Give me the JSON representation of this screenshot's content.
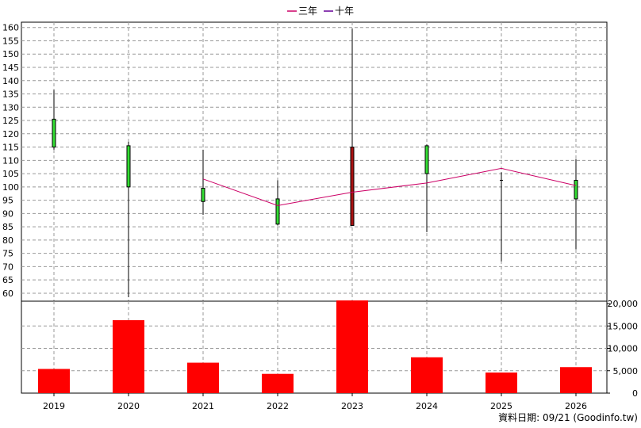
{
  "legend": [
    {
      "label": "三年",
      "color": "#cc0066"
    },
    {
      "label": "十年",
      "color": "#660099"
    }
  ],
  "footer": "資料日期: 09/21  (Goodinfo.tw)",
  "chart_data": {
    "type": "candlestick",
    "categories": [
      "2019",
      "2020",
      "2021",
      "2022",
      "2023",
      "2024",
      "2025",
      "2026"
    ],
    "price_axis": {
      "ylim": [
        57,
        162
      ],
      "ticks": [
        60,
        65,
        70,
        75,
        80,
        85,
        90,
        95,
        100,
        105,
        110,
        115,
        120,
        125,
        130,
        135,
        140,
        145,
        150,
        155,
        160
      ]
    },
    "candles": [
      {
        "x": "2019",
        "open": 115,
        "high": 136.5,
        "low": 114,
        "close": 125.5,
        "color": "#33dd33"
      },
      {
        "x": "2020",
        "open": 100,
        "high": 117,
        "low": 58.5,
        "close": 115.5,
        "color": "#33dd33"
      },
      {
        "x": "2021",
        "open": 94.5,
        "high": 114,
        "low": 89.5,
        "close": 99.5,
        "color": "#33dd33"
      },
      {
        "x": "2022",
        "open": 86,
        "high": 102.5,
        "low": 85.5,
        "close": 95.5,
        "color": "#33dd33"
      },
      {
        "x": "2023",
        "open": 115,
        "high": 159.5,
        "low": 85.5,
        "close": 85.5,
        "color": "#aa1111"
      },
      {
        "x": "2024",
        "open": 105,
        "high": 116,
        "low": 83,
        "close": 115.5,
        "color": "#33dd33"
      },
      {
        "x": "2025",
        "open": 102.5,
        "high": 105.5,
        "low": 72,
        "close": 102.5,
        "color": "#000000"
      },
      {
        "x": "2026",
        "open": 95.5,
        "high": 110.5,
        "low": 76.5,
        "close": 102.5,
        "color": "#33dd33"
      }
    ],
    "series": [
      {
        "name": "三年",
        "color": "#cc0066",
        "points": [
          {
            "x": "2021",
            "y": 103
          },
          {
            "x": "2022",
            "y": 93
          },
          {
            "x": "2023",
            "y": 98
          },
          {
            "x": "2024",
            "y": 101.5
          },
          {
            "x": "2025",
            "y": 107
          },
          {
            "x": "2026",
            "y": 100.5
          }
        ]
      }
    ],
    "volume_axis": {
      "ylim": [
        0,
        20000
      ],
      "ticks": [
        0,
        5000,
        10000,
        15000,
        20000
      ],
      "tick_labels": [
        "0",
        "5,000",
        "10,000",
        "15,000",
        "20,000"
      ]
    },
    "volume": [
      {
        "x": "2019",
        "value": 5400
      },
      {
        "x": "2020",
        "value": 16300
      },
      {
        "x": "2021",
        "value": 6800
      },
      {
        "x": "2022",
        "value": 4300
      },
      {
        "x": "2023",
        "value": 20700
      },
      {
        "x": "2024",
        "value": 8000
      },
      {
        "x": "2025",
        "value": 4600
      },
      {
        "x": "2026",
        "value": 5800
      }
    ],
    "volume_color": "#ff0000",
    "grid": true
  }
}
